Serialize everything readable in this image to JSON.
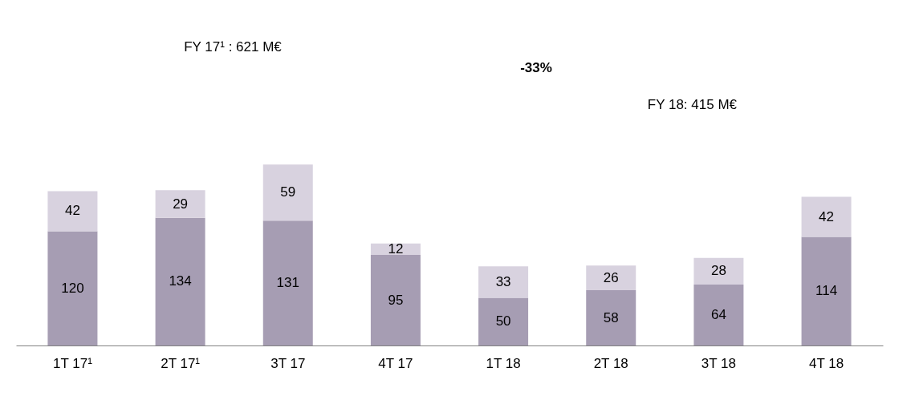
{
  "chart_data": {
    "type": "bar",
    "stacked": true,
    "data_labels": true,
    "categories": [
      "1T 17¹",
      "2T 17¹",
      "3T 17",
      "4T 17",
      "1T 18",
      "2T 18",
      "3T 18",
      "4T 18"
    ],
    "series": [
      {
        "color": "#a69db3",
        "values": [
          120,
          134,
          131,
          95,
          50,
          58,
          64,
          114
        ]
      },
      {
        "color": "#d8d2df",
        "values": [
          42,
          29,
          59,
          12,
          33,
          26,
          28,
          42
        ]
      }
    ],
    "annotations": [
      "FY 17¹ : 621 M€",
      "-33%",
      "FY 18: 415 M€"
    ]
  }
}
